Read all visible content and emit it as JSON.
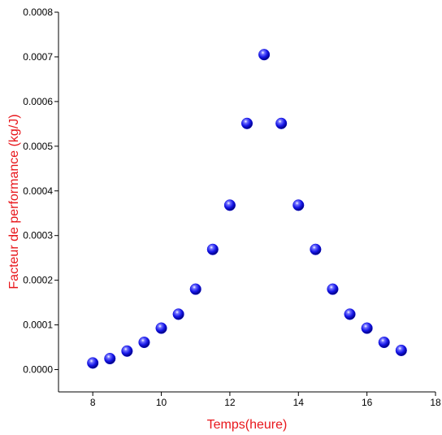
{
  "chart_data": {
    "type": "scatter",
    "xlabel": "Temps(heure)",
    "ylabel": "Facteur de performance (kg/J)",
    "xlim": [
      7,
      18
    ],
    "ylim": [
      -5e-05,
      0.0008
    ],
    "x_ticks": [
      "8",
      "10",
      "12",
      "14",
      "16",
      "18"
    ],
    "y_ticks": [
      "0.0000",
      "0.0001",
      "0.0002",
      "0.0003",
      "0.0004",
      "0.0005",
      "0.0006",
      "0.0007",
      "0.0008"
    ],
    "grid": false,
    "label_color": "#e8161b",
    "marker_color": "#0a0ae0",
    "series": [
      {
        "x": [
          8,
          8.5,
          9,
          9.5,
          10,
          10.5,
          11,
          11.5,
          12,
          12.5,
          13,
          13.5,
          14,
          14.5,
          15,
          15.5,
          16,
          16.5,
          17
        ],
        "y": [
          1.48e-05,
          2.46e-05,
          4.14e-05,
          6.1e-05,
          9.27e-05,
          0.000124,
          0.00018,
          0.000269,
          0.000368,
          0.000551,
          0.000705,
          0.000551,
          0.000368,
          0.000269,
          0.00018,
          0.000124,
          9.27e-05,
          6.1e-05,
          4.29e-05
        ]
      }
    ]
  }
}
